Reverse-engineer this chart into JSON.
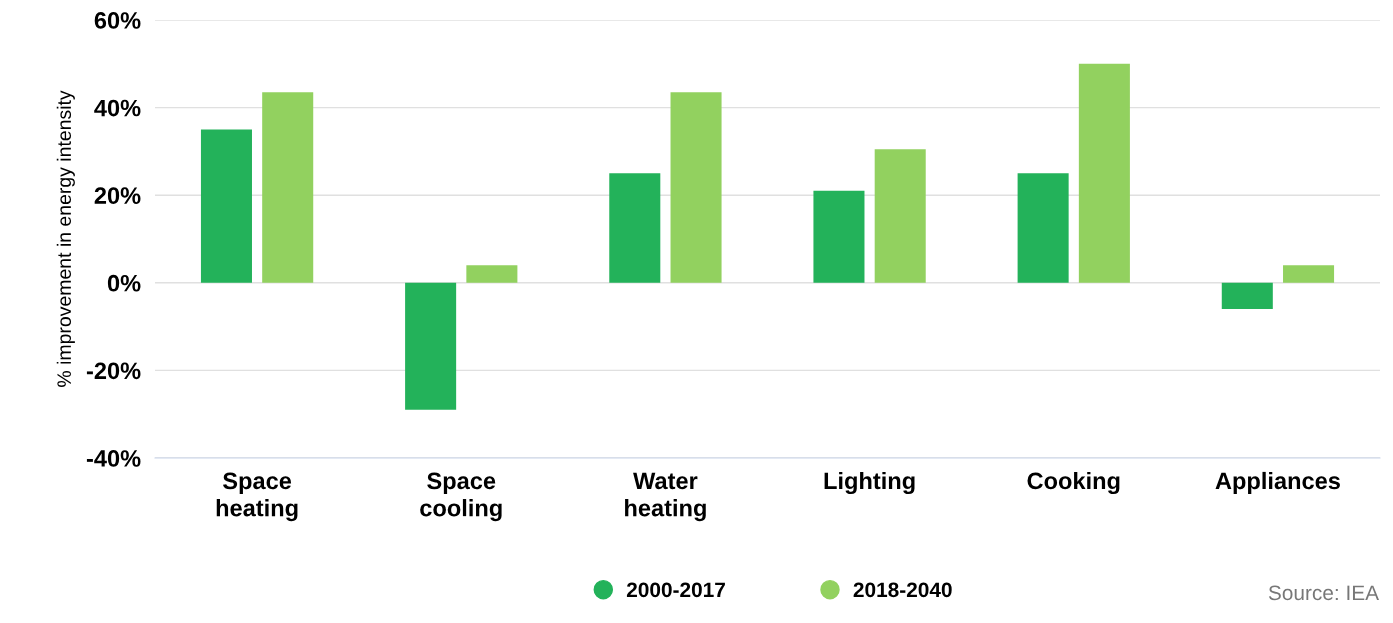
{
  "chart_data": {
    "type": "bar",
    "ylabel": "% improvement in energy intensity",
    "categories": [
      "Space\nheating",
      "Space\ncooling",
      "Water\nheating",
      "Lighting",
      "Cooking",
      "Appliances"
    ],
    "series": [
      {
        "name": "2000-2017",
        "color": "#23b25a",
        "values": [
          35,
          -29,
          25,
          21,
          25,
          -6
        ]
      },
      {
        "name": "2018-2040",
        "color": "#92d15f",
        "values": [
          43.5,
          4,
          43.5,
          30.5,
          50,
          4
        ]
      }
    ],
    "ylim": [
      -40,
      60
    ],
    "yticks": [
      {
        "value": -40,
        "label": "-40%"
      },
      {
        "value": -20,
        "label": "-20%"
      },
      {
        "value": 0,
        "label": "0%"
      },
      {
        "value": 20,
        "label": "20%"
      },
      {
        "value": 40,
        "label": "40%"
      },
      {
        "value": 60,
        "label": "60%"
      }
    ],
    "grid": "y",
    "legend": "bottom",
    "marker": "circle",
    "annotations": [
      "Source: IEA"
    ]
  }
}
